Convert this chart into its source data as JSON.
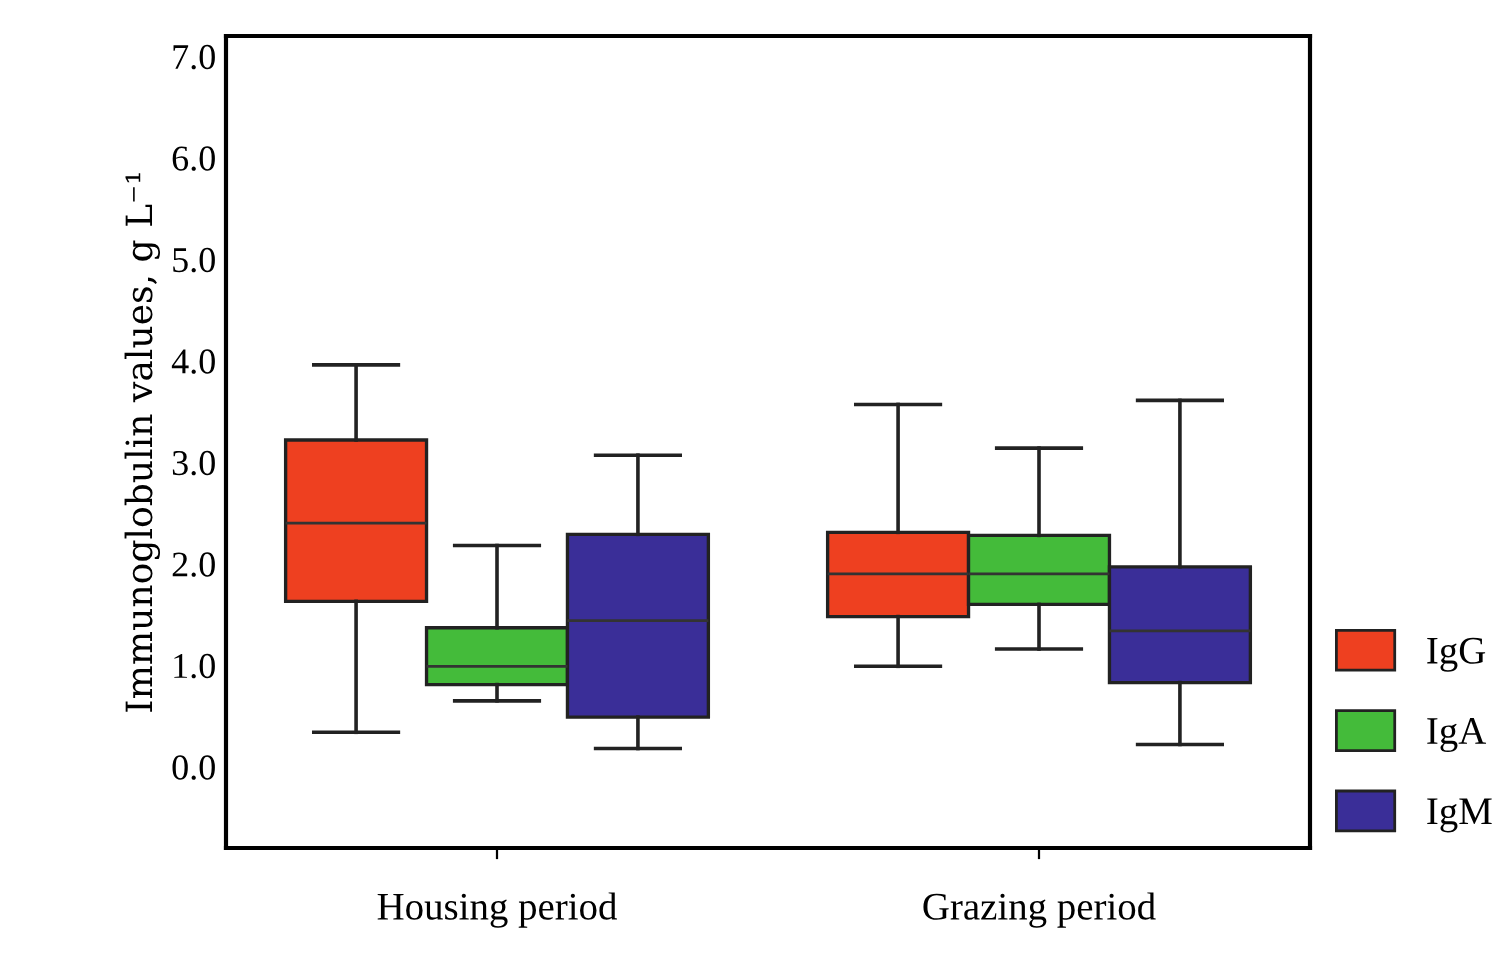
{
  "chart_data": {
    "type": "box",
    "ylabel": "Immunoglobulin values, g L⁻¹",
    "categories": [
      "Housing period",
      "Grazing period"
    ],
    "series": [
      {
        "name": "IgG",
        "color": "#ee4020",
        "boxes": [
          {
            "low": 0.34,
            "q1": 1.63,
            "median": 2.4,
            "q3": 3.22,
            "high": 3.96
          },
          {
            "low": 0.99,
            "q1": 1.48,
            "median": 1.9,
            "q3": 2.31,
            "high": 3.57
          }
        ]
      },
      {
        "name": "IgA",
        "color": "#44bb3a",
        "boxes": [
          {
            "low": 0.65,
            "q1": 0.81,
            "median": 0.99,
            "q3": 1.37,
            "high": 2.18
          },
          {
            "low": 1.16,
            "q1": 1.6,
            "median": 1.9,
            "q3": 2.28,
            "high": 3.14
          }
        ]
      },
      {
        "name": "IgM",
        "color": "#3a2e98",
        "boxes": [
          {
            "low": 0.18,
            "q1": 0.49,
            "median": 1.44,
            "q3": 2.29,
            "high": 3.07
          },
          {
            "low": 0.22,
            "q1": 0.83,
            "median": 1.34,
            "q3": 1.97,
            "high": 3.61
          }
        ]
      }
    ],
    "ylim": [
      -0.8,
      7.2
    ],
    "yticks": [
      {
        "value": 0,
        "label": "0.0"
      },
      {
        "value": 1,
        "label": "1.0"
      },
      {
        "value": 2,
        "label": "2.0"
      },
      {
        "value": 3,
        "label": "3.0"
      },
      {
        "value": 4,
        "label": "4.0"
      },
      {
        "value": 5,
        "label": "5.0"
      },
      {
        "value": 6,
        "label": "6.0"
      },
      {
        "value": 7,
        "label": "7.0"
      }
    ],
    "legend": "right",
    "grid": false
  }
}
